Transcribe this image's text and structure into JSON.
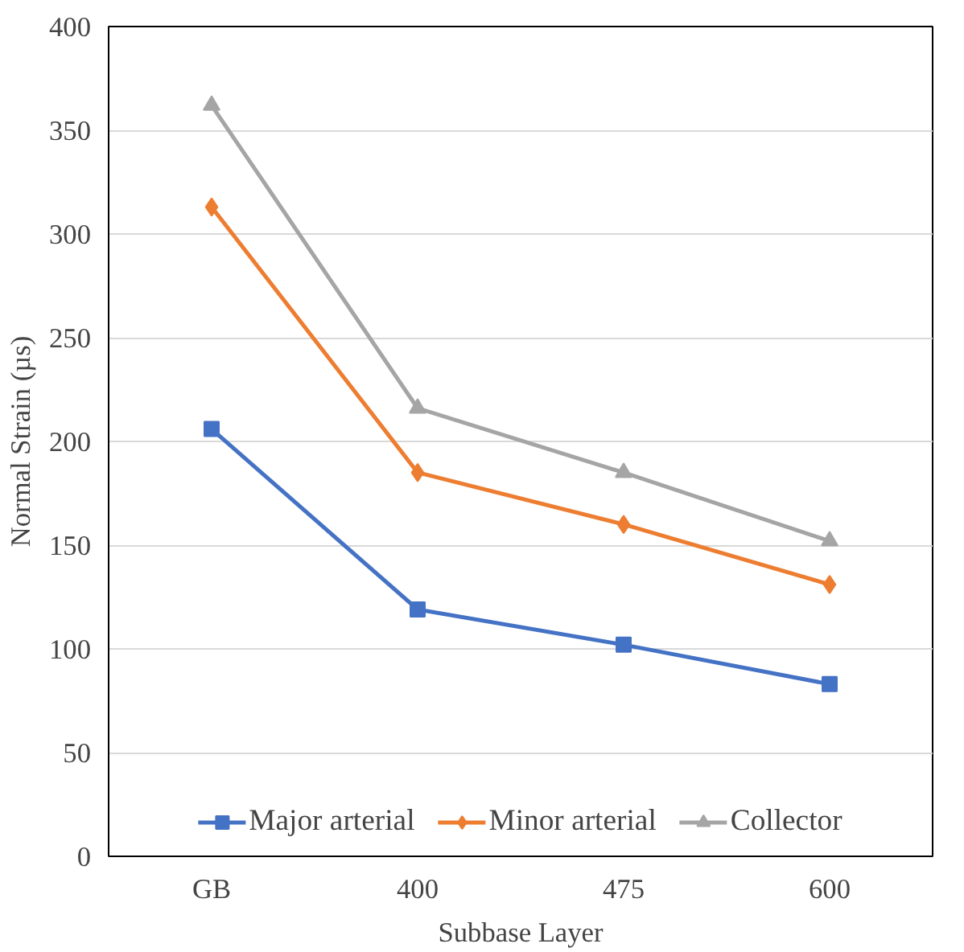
{
  "chart_data": {
    "type": "line",
    "xlabel": "Subbase Layer",
    "ylabel": "Normal Strain (µs)",
    "categories": [
      "GB",
      "400",
      "475",
      "600"
    ],
    "series": [
      {
        "name": "Major arterial",
        "color": "#4472c4",
        "marker": "square",
        "values": [
          206,
          119,
          102,
          83
        ]
      },
      {
        "name": "Minor arterial",
        "color": "#ed7d31",
        "marker": "diamond",
        "values": [
          313,
          185,
          160,
          131
        ]
      },
      {
        "name": "Collector",
        "color": "#a5a5a5",
        "marker": "triangle",
        "values": [
          362,
          216,
          185,
          152
        ]
      }
    ],
    "ylim": [
      0,
      400
    ],
    "yticks": [
      0,
      50,
      100,
      150,
      200,
      250,
      300,
      350,
      400
    ],
    "grid": "y",
    "legend": "bottom",
    "line_style": "solid"
  }
}
